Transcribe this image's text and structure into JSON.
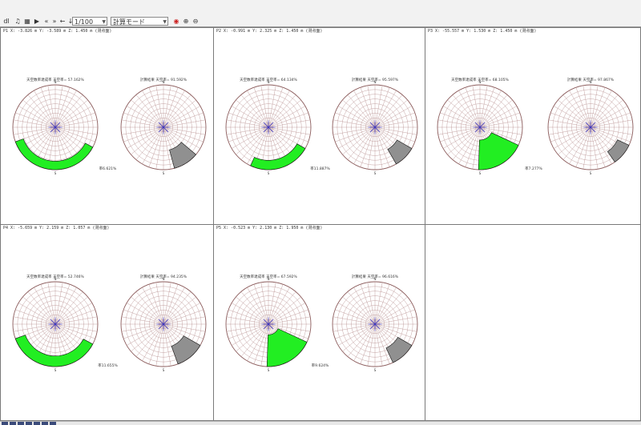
{
  "toolbar": {
    "buttons": [
      "dl",
      "♫",
      "▦",
      "▶",
      "«",
      "»",
      "←",
      "↓",
      "✖",
      "≋"
    ],
    "scale": "1/100",
    "mode": "計算モード",
    "zoom_icons": [
      "refresh",
      "zoom-in",
      "zoom-out"
    ]
  },
  "colors": {
    "grid": "#b48a8a",
    "net": "#2c2ccc",
    "green": "#22ee22",
    "shadow": "#909090",
    "border": "#7a7a7a"
  },
  "panes": [
    {
      "header": "P1 X:  -3.826 m  Y:  -3.589 m  Z:  1.450 m (测点面)",
      "left_title": "天空数率達成率  天空率= 57.162%",
      "right_title": "計算結果     天空率= 91.592%",
      "ratio_label": "率6.621%"
    },
    {
      "header": "P2 X:  -0.991 m  Y:   2.325 m  Z:  1.450 m (测点面)",
      "left_title": "天空数率達成率  天空率= 64.134%",
      "right_title": "計算結果     天空率= 95.597%",
      "ratio_label": "率11.887%"
    },
    {
      "header": "P3 X:  -55.557 m  Y:   1.530 m  Z:  1.450 m (测点面)",
      "left_title": "天空数率達成率  天空率= 68.105%",
      "right_title": "計算結果     天空率= 97.867%",
      "ratio_label": "率7.277%"
    },
    {
      "header": "P4 X:  -5.659 m  Y:   2.159 m  Z:  1.057 m (测点面)",
      "left_title": "天空数率達成率  天空率= 52.746%",
      "right_title": "計算結果     天空率= 94.235%",
      "ratio_label": "率11.655%"
    },
    {
      "header": "P5 X:  -0.523 m  Y:   2.130 m  Z:  1.950 m (测点面)",
      "left_title": "天空数率達成率  天空率= 67.592%",
      "right_title": "計算結果     天空率= 96.616%",
      "ratio_label": "率9.624%"
    }
  ],
  "polar_labels": {
    "north": "N",
    "south": "S"
  },
  "statusbar": {
    "icons": 7
  }
}
